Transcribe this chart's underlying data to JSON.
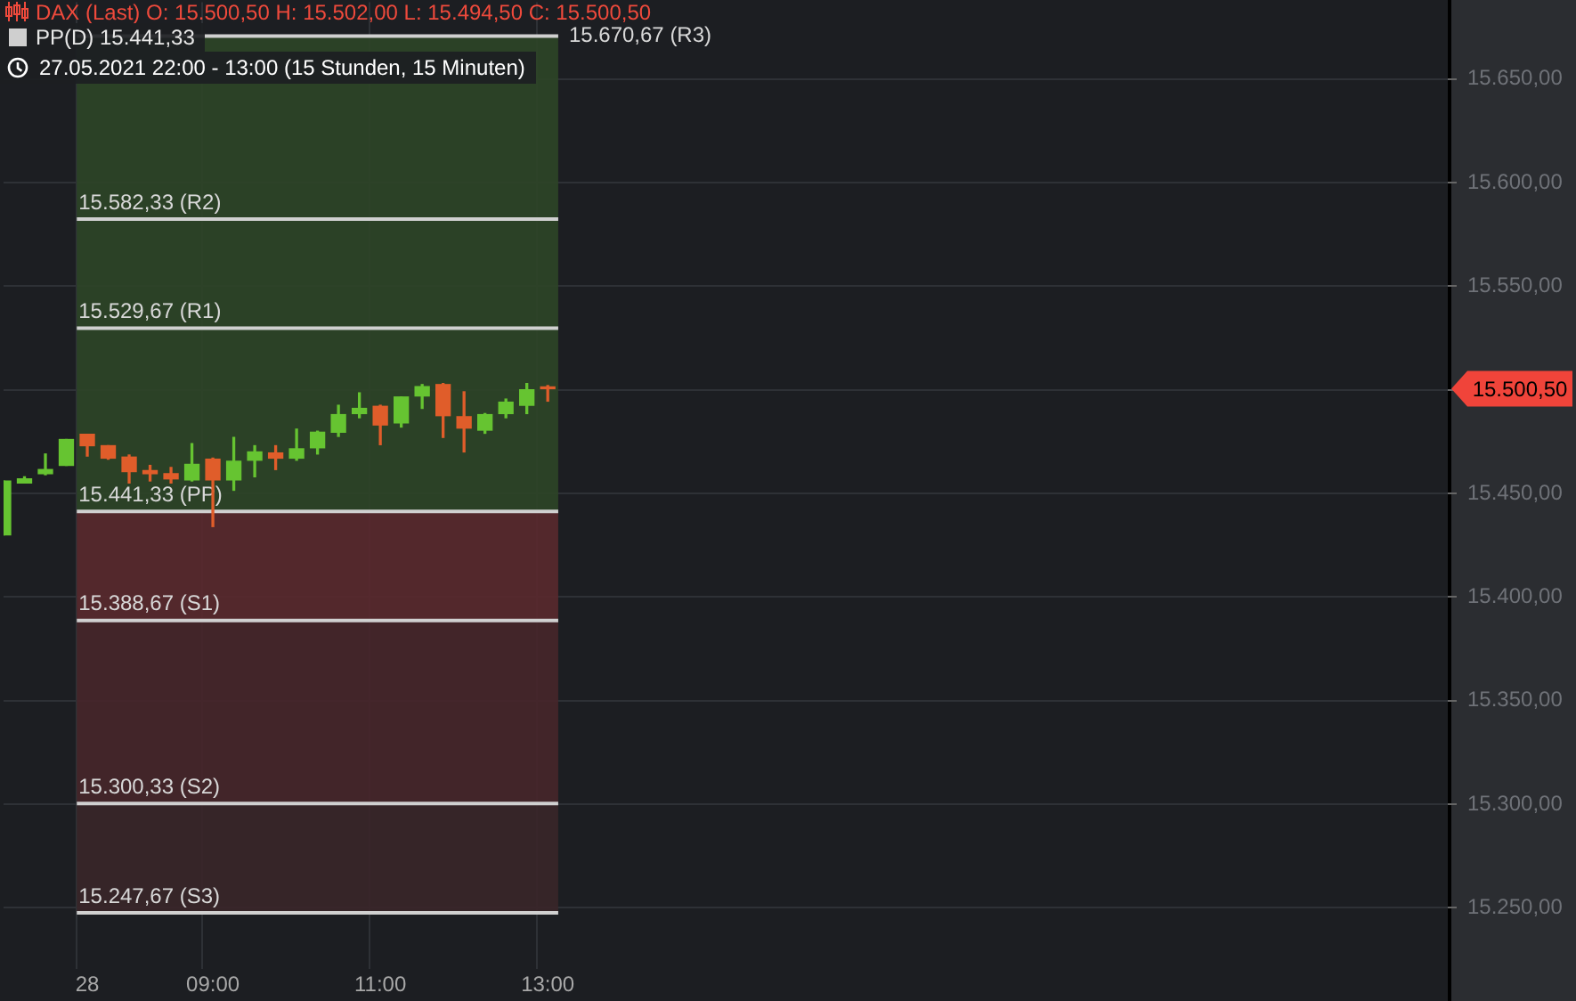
{
  "chart_data": {
    "type": "candlestick",
    "title": "DAX (Last)  O: 15.500,50  H: 15.502,00  L: 15.494,50  C: 15.500,50",
    "subtitle": "PP(D)  15.441,33",
    "annotations": [
      "27.05.2021 22:00 - 13:00   (15 Stunden, 15 Minuten)",
      "15.500,50"
    ],
    "categories": [
      null,
      null,
      null,
      null,
      "28",
      null,
      null,
      null,
      null,
      null,
      "09:00",
      null,
      null,
      null,
      null,
      null,
      null,
      null,
      "11:00",
      null,
      null,
      null,
      null,
      null,
      null,
      null,
      "13:00",
      null,
      null,
      null,
      null,
      null,
      null,
      null,
      null,
      null,
      null,
      null,
      null,
      null,
      null,
      null,
      null,
      null,
      null,
      null,
      null,
      null,
      null,
      null,
      null,
      null,
      null,
      null,
      null,
      null,
      null,
      null,
      null,
      null,
      null,
      null,
      null,
      null,
      null,
      null,
      null,
      null,
      null,
      null
    ],
    "ohlc": [
      [
        15430,
        15456,
        15430,
        15456
      ],
      [
        15455,
        15458,
        15455,
        15457
      ],
      [
        15459.5,
        15469,
        15459,
        15461.5
      ],
      [
        15463.5,
        15476,
        15463.5,
        15476
      ],
      [
        15478.5,
        15478.5,
        15468,
        15473
      ],
      [
        15473,
        15473,
        15466.5,
        15467
      ],
      [
        15467.5,
        15468.5,
        15455,
        15460.5
      ],
      [
        15461,
        15463.5,
        15456,
        15459.5
      ],
      [
        15459.5,
        15462.5,
        15455,
        15457
      ],
      [
        15456.5,
        15474,
        15456,
        15464
      ],
      [
        15466.5,
        15467,
        15434,
        15456.5
      ],
      [
        15456.5,
        15477,
        15451.5,
        15465.5
      ],
      [
        15466,
        15473,
        15458,
        15470
      ],
      [
        15469.5,
        15473,
        15461.5,
        15467
      ],
      [
        15467,
        15481,
        15466,
        15471.5
      ],
      [
        15472,
        15480,
        15469,
        15479.5
      ],
      [
        15479.5,
        15492.5,
        15477.5,
        15488
      ],
      [
        15488.5,
        15498.5,
        15486.5,
        15491
      ],
      [
        15492,
        15492.5,
        15473.5,
        15483
      ],
      [
        15484,
        15496.5,
        15482,
        15496.5
      ],
      [
        15497,
        15502.5,
        15491,
        15501.5
      ],
      [
        15502.5,
        15503,
        15477,
        15487.5
      ],
      [
        15487,
        15499,
        15470,
        15481.5
      ],
      [
        15480.5,
        15488.5,
        15479,
        15488
      ],
      [
        15488.5,
        15495.5,
        15486.5,
        15494
      ],
      [
        15492.5,
        15503,
        15488.5,
        15500
      ],
      [
        15500.5,
        15502,
        15494.5,
        15500.5
      ],
      null,
      null,
      null,
      null,
      null,
      null,
      null,
      null,
      null,
      null,
      null,
      null,
      null,
      null,
      null,
      null,
      null,
      null,
      null,
      null,
      null,
      null,
      null,
      null,
      null,
      null,
      null,
      null,
      null,
      null,
      null,
      null,
      null,
      null,
      null,
      null,
      null,
      null,
      null,
      null,
      null,
      null,
      null
    ],
    "colors": [
      "#66c431",
      "#66c431",
      "#66c431",
      "#66c431",
      "#e05d2a",
      "#e05d2a",
      "#e05d2a",
      "#e05d2a",
      "#e05d2a",
      "#66c431",
      "#e05d2a",
      "#66c431",
      "#66c431",
      "#e05d2a",
      "#66c431",
      "#66c431",
      "#66c431",
      "#66c431",
      "#e05d2a",
      "#66c431",
      "#66c431",
      "#e05d2a",
      "#e05d2a",
      "#66c431",
      "#66c431",
      "#66c431",
      "#e05d2a",
      null,
      null,
      null,
      null,
      null,
      null,
      null,
      null,
      null,
      null,
      null,
      null,
      null,
      null,
      null,
      null,
      null,
      null,
      null,
      null,
      null,
      null,
      null,
      null,
      null,
      null,
      null,
      null,
      null,
      null,
      null,
      null,
      null,
      null,
      null,
      null,
      null,
      null,
      null,
      null,
      null,
      null,
      null
    ],
    "ylim": [
      15224,
      15687
    ],
    "yticks": [
      {
        "value": 15250,
        "label": "15.250,00"
      },
      {
        "value": 15300,
        "label": "15.300,00"
      },
      {
        "value": 15350,
        "label": "15.350,00"
      },
      {
        "value": 15400,
        "label": "15.400,00"
      },
      {
        "value": 15450,
        "label": "15.450,00"
      },
      {
        "value": 15500,
        "label": null
      },
      {
        "value": 15550,
        "label": "15.550,00"
      },
      {
        "value": 15600,
        "label": "15.600,00"
      },
      {
        "value": 15650,
        "label": "15.650,00"
      }
    ],
    "grid": true,
    "legend": false,
    "bands": [
      {
        "axis": "y",
        "from": 15441.33,
        "to": 15670.67,
        "color": "#2d4527"
      },
      {
        "axis": "y",
        "from": 15388.67,
        "to": 15441.33,
        "color": "#5a292d"
      },
      {
        "axis": "y",
        "from": 15300.33,
        "to": 15388.67,
        "color": "#47262a"
      },
      {
        "axis": "y",
        "from": 15247.67,
        "to": 15300.33,
        "color": "#3a2629"
      }
    ],
    "ref_lines": [
      {
        "axis": "y",
        "value": 15670.67,
        "label": "15.670,67 (R3)",
        "color": "#d0d0d0"
      },
      {
        "axis": "y",
        "value": 15582.33,
        "label": "15.582,33 (R2)",
        "color": "#d0d0d0"
      },
      {
        "axis": "y",
        "value": 15529.67,
        "label": "15.529,67 (R1)",
        "color": "#d0d0d0"
      },
      {
        "axis": "y",
        "value": 15441.33,
        "label": "15.441,33 (PP)",
        "color": "#d0d0d0"
      },
      {
        "axis": "y",
        "value": 15388.67,
        "label": "15.388,67 (S1)",
        "color": "#d0d0d0"
      },
      {
        "axis": "y",
        "value": 15300.33,
        "label": "15.300,33 (S2)",
        "color": "#d0d0d0"
      },
      {
        "axis": "y",
        "value": 15247.67,
        "label": "15.247,67 (S3)",
        "color": "#d0d0d0"
      }
    ]
  }
}
